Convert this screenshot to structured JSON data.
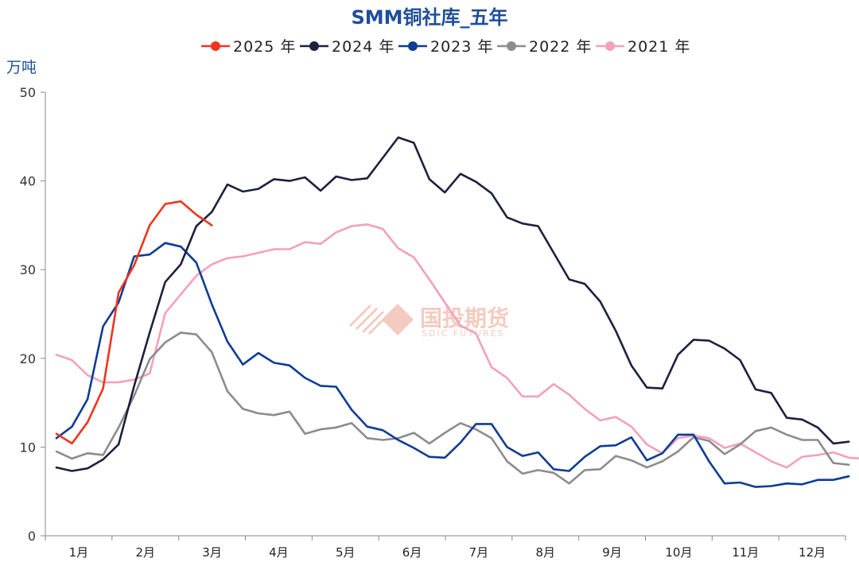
{
  "chart_data": {
    "type": "line",
    "title": "SMM铜社库_五年",
    "unit_label": "万吨",
    "ylim": [
      0,
      50
    ],
    "yticks": [
      0,
      10,
      20,
      30,
      40,
      50
    ],
    "months": [
      "1月",
      "2月",
      "3月",
      "4月",
      "5月",
      "6月",
      "7月",
      "8月",
      "9月",
      "10月",
      "11月",
      "12月"
    ],
    "x_domain_weeks": [
      0,
      48
    ],
    "legend_position": "top-center",
    "grid": false,
    "watermark": {
      "cn": "国投期货",
      "en": "SDIC FUTURES"
    },
    "series": [
      {
        "name": "2021 年",
        "color": "#f4a0bd",
        "values": [
          20.4,
          19.8,
          18.1,
          17.3,
          17.3,
          17.6,
          18.3,
          25.1,
          27.2,
          29.3,
          30.6,
          31.3,
          31.5,
          31.9,
          32.3,
          32.3,
          33.1,
          32.9,
          34.2,
          34.9,
          35.1,
          34.6,
          32.4,
          31.4,
          28.9,
          26.3,
          23.7,
          22.8,
          19.0,
          17.8,
          15.7,
          15.7,
          17.1,
          15.9,
          14.3,
          13.0,
          13.4,
          12.3,
          10.3,
          9.3,
          11.0,
          11.3,
          11.0,
          9.9,
          10.4,
          9.4,
          8.4,
          7.7,
          8.9,
          9.1,
          9.4,
          8.8,
          8.7
        ]
      },
      {
        "name": "2022 年",
        "color": "#8c8c8c",
        "values": [
          9.5,
          8.7,
          9.3,
          9.1,
          12.2,
          15.8,
          19.9,
          21.8,
          22.9,
          22.7,
          20.7,
          16.3,
          14.3,
          13.8,
          13.6,
          14.0,
          11.5,
          12.0,
          12.2,
          12.7,
          11.0,
          10.8,
          11.0,
          11.6,
          10.4,
          11.6,
          12.7,
          12.0,
          11.0,
          8.4,
          7.0,
          7.4,
          7.1,
          5.9,
          7.4,
          7.5,
          9.0,
          8.5,
          7.7,
          8.4,
          9.5,
          11.1,
          10.7,
          9.2,
          10.3,
          11.8,
          12.2,
          11.4,
          10.8,
          10.8,
          8.2,
          8.0
        ]
      },
      {
        "name": "2023 年",
        "color": "#0f3c96",
        "values": [
          11.0,
          12.3,
          15.4,
          23.6,
          26.3,
          31.5,
          31.7,
          33.0,
          32.6,
          30.8,
          26.1,
          21.9,
          19.3,
          20.6,
          19.5,
          19.2,
          17.8,
          16.9,
          16.8,
          14.2,
          12.3,
          11.9,
          10.8,
          9.9,
          8.9,
          8.8,
          10.5,
          12.6,
          12.6,
          10.0,
          9.0,
          9.4,
          7.5,
          7.3,
          8.9,
          10.1,
          10.2,
          11.1,
          8.5,
          9.3,
          11.4,
          11.4,
          8.4,
          5.9,
          6.0,
          5.5,
          5.6,
          5.9,
          5.8,
          6.3,
          6.3,
          6.7
        ]
      },
      {
        "name": "2024 年",
        "color": "#1c2140",
        "values": [
          7.7,
          7.3,
          7.6,
          8.6,
          10.3,
          16.9,
          22.9,
          28.6,
          30.6,
          34.9,
          36.5,
          39.6,
          38.8,
          39.1,
          40.2,
          40.0,
          40.4,
          38.9,
          40.5,
          40.1,
          40.3,
          42.6,
          44.9,
          44.3,
          40.2,
          38.7,
          40.8,
          39.9,
          38.6,
          35.9,
          35.2,
          34.9,
          31.9,
          28.9,
          28.4,
          26.4,
          23.1,
          19.2,
          16.7,
          16.6,
          20.4,
          22.1,
          22.0,
          21.1,
          19.8,
          16.5,
          16.1,
          13.3,
          13.1,
          12.2,
          10.4,
          10.6
        ]
      },
      {
        "name": "2025 年",
        "color": "#f0341e",
        "values": [
          11.5,
          10.4,
          12.8,
          16.6,
          27.4,
          30.5,
          35.0,
          37.4,
          37.7,
          36.2,
          35.0
        ]
      }
    ]
  }
}
